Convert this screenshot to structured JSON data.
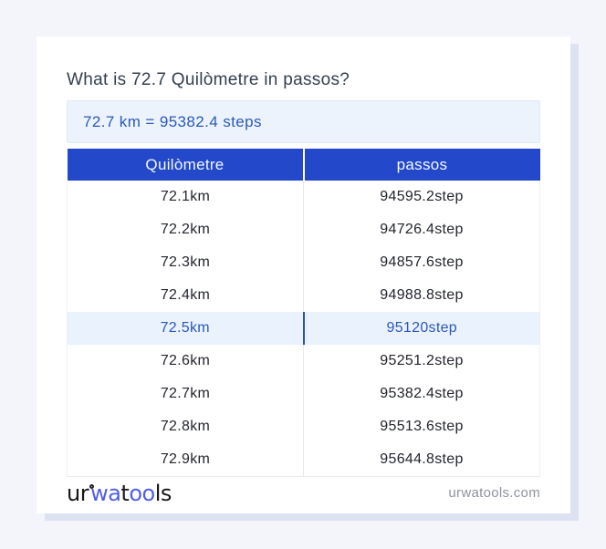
{
  "title": "What is 72.7 Quilòmetre in passos?",
  "result": "72.7 km = 95382.4 steps",
  "table": {
    "headers": [
      "Quilòmetre",
      "passos"
    ],
    "rows": [
      {
        "km": "72.1km",
        "steps": "94595.2step"
      },
      {
        "km": "72.2km",
        "steps": "94726.4step"
      },
      {
        "km": "72.3km",
        "steps": "94857.6step"
      },
      {
        "km": "72.4km",
        "steps": "94988.8step"
      },
      {
        "km": "72.5km",
        "steps": "95120step"
      },
      {
        "km": "72.6km",
        "steps": "95251.2step"
      },
      {
        "km": "72.7km",
        "steps": "95382.4step"
      },
      {
        "km": "72.8km",
        "steps": "95513.6step"
      },
      {
        "km": "72.9km",
        "steps": "95644.8step"
      }
    ],
    "highlighted_row_index": 4
  },
  "footer": {
    "logo": {
      "part1": "ur",
      "part2": "wa",
      "part3": "t",
      "part4": "oo",
      "part5": "ls"
    },
    "domain": "urwatools.com"
  },
  "colors": {
    "header_blue": "#2348ca",
    "highlight_bg": "#eaf2fd",
    "highlight_text": "#2a59bb",
    "result_bg": "#ecf3fd",
    "logo_blue": "#4f5ee8",
    "page_bg": "#f3f5fa"
  }
}
